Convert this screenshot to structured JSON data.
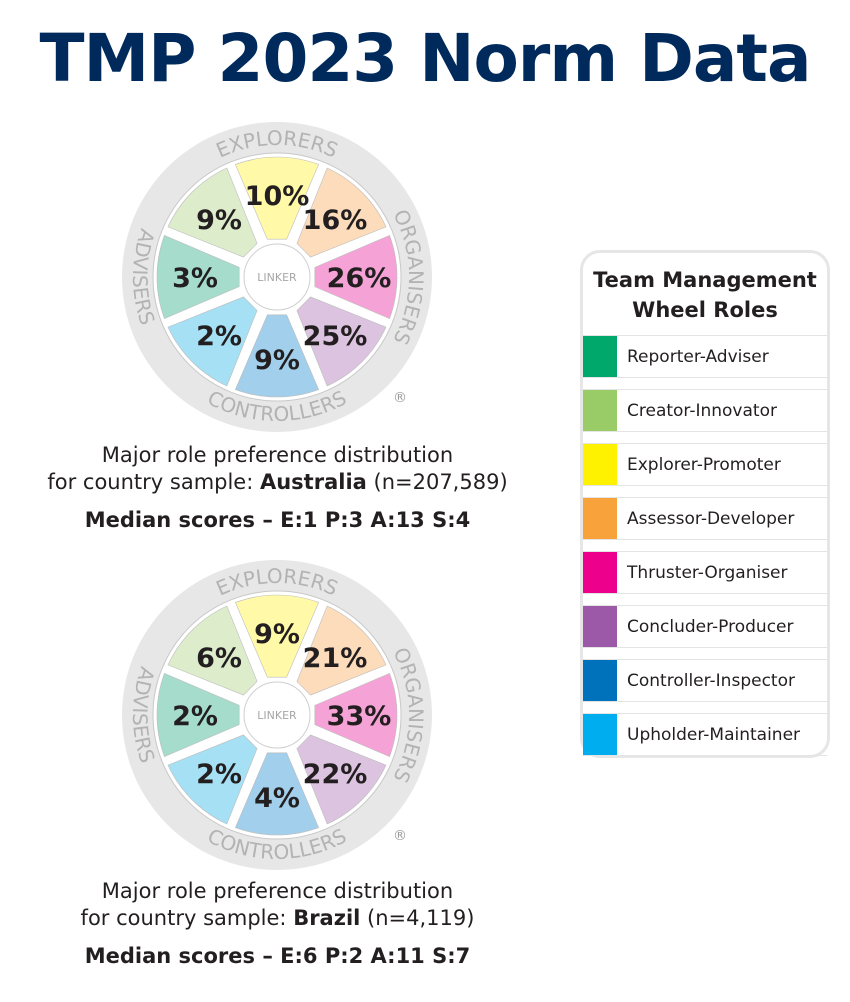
{
  "title": "TMP 2023 Norm Data",
  "wheel_labels": {
    "top": "EXPLORERS",
    "right": "ORGANISERS",
    "bottom": "CONTROLLERS",
    "left": "ADVISERS",
    "center": "LINKER",
    "registered": "®"
  },
  "legend": {
    "title_line1": "Team Management",
    "title_line2": "Wheel Roles",
    "items": [
      {
        "label": "Reporter-Adviser",
        "color": "#00a86b"
      },
      {
        "label": "Creator-Innovator",
        "color": "#99cc66"
      },
      {
        "label": "Explorer-Promoter",
        "color": "#fff200"
      },
      {
        "label": "Assessor-Developer",
        "color": "#f7a23b"
      },
      {
        "label": "Thruster-Organiser",
        "color": "#ec008c"
      },
      {
        "label": "Concluder-Producer",
        "color": "#9b59a8"
      },
      {
        "label": "Controller-Inspector",
        "color": "#0072bc"
      },
      {
        "label": "Upholder-Maintainer",
        "color": "#00aeef"
      }
    ]
  },
  "chart_data": [
    {
      "type": "pie",
      "title": "Major role preference distribution for country sample: Australia (n=207,589)",
      "country": "Australia",
      "caption_line1": "Major role preference distribution",
      "caption_prefix": "for country sample: ",
      "caption_sample": " (n=207,589)",
      "median": "Median scores – E:1 P:3 A:13 S:4",
      "segments_clockwise_from_top": [
        {
          "role": "Explorer-Promoter",
          "value": 10,
          "label": "10%",
          "fill": "#fff9a8"
        },
        {
          "role": "Assessor-Developer",
          "value": 16,
          "label": "16%",
          "fill": "#fcdcbb"
        },
        {
          "role": "Thruster-Organiser",
          "value": 26,
          "label": "26%",
          "fill": "#f5a3d6"
        },
        {
          "role": "Concluder-Producer",
          "value": 25,
          "label": "25%",
          "fill": "#dcc3e0"
        },
        {
          "role": "Controller-Inspector",
          "value": 9,
          "label": "9%",
          "fill": "#a2cfeb"
        },
        {
          "role": "Upholder-Maintainer",
          "value": 2,
          "label": "2%",
          "fill": "#a5e0f5"
        },
        {
          "role": "Reporter-Adviser",
          "value": 3,
          "label": "3%",
          "fill": "#a5dccb"
        },
        {
          "role": "Creator-Innovator",
          "value": 9,
          "label": "9%",
          "fill": "#ddedcc"
        }
      ]
    },
    {
      "type": "pie",
      "title": "Major role preference distribution for country sample: Brazil (n=4,119)",
      "country": "Brazil",
      "caption_line1": "Major role preference distribution",
      "caption_prefix": "for country sample: ",
      "caption_sample": " (n=4,119)",
      "median": "Median scores – E:6 P:2 A:11 S:7",
      "segments_clockwise_from_top": [
        {
          "role": "Explorer-Promoter",
          "value": 9,
          "label": "9%",
          "fill": "#fff9a8"
        },
        {
          "role": "Assessor-Developer",
          "value": 21,
          "label": "21%",
          "fill": "#fcdcbb"
        },
        {
          "role": "Thruster-Organiser",
          "value": 33,
          "label": "33%",
          "fill": "#f5a3d6"
        },
        {
          "role": "Concluder-Producer",
          "value": 22,
          "label": "22%",
          "fill": "#dcc3e0"
        },
        {
          "role": "Controller-Inspector",
          "value": 4,
          "label": "4%",
          "fill": "#a2cfeb"
        },
        {
          "role": "Upholder-Maintainer",
          "value": 2,
          "label": "2%",
          "fill": "#a5e0f5"
        },
        {
          "role": "Reporter-Adviser",
          "value": 2,
          "label": "2%",
          "fill": "#a5dccb"
        },
        {
          "role": "Creator-Innovator",
          "value": 6,
          "label": "6%",
          "fill": "#ddedcc"
        }
      ]
    }
  ]
}
